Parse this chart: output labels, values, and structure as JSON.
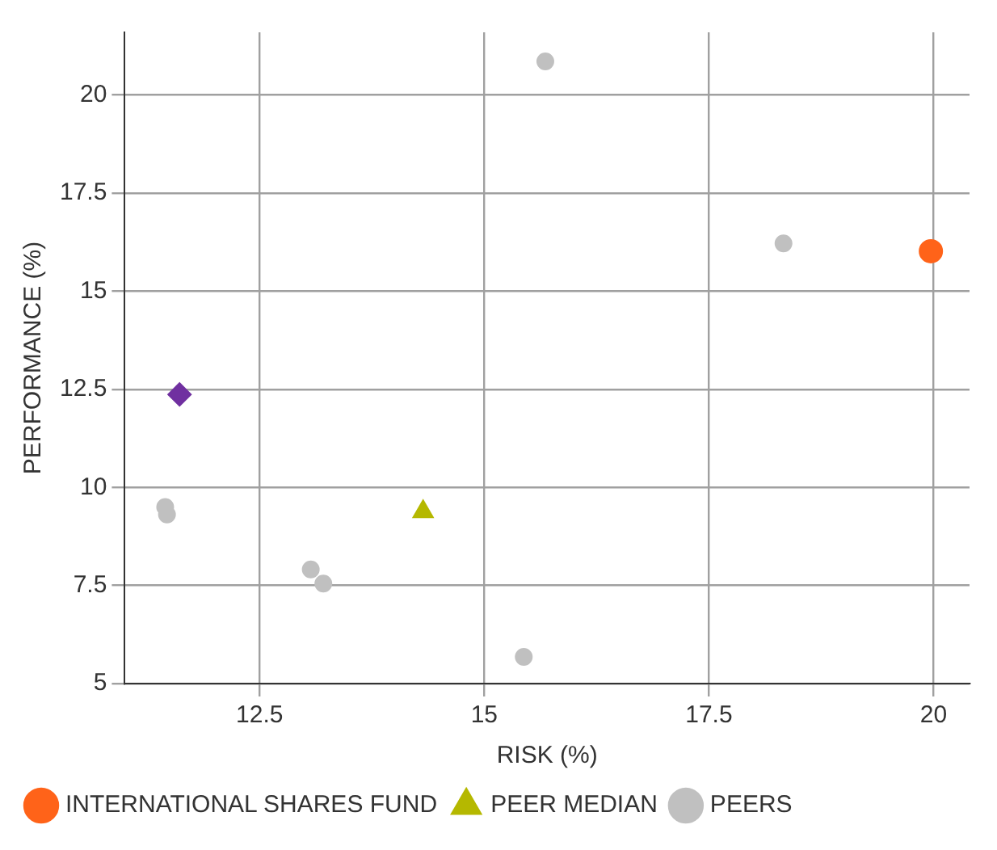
{
  "chart_data": {
    "type": "scatter",
    "xlabel": "RISK (%)",
    "ylabel": "PERFORMANCE (%)",
    "xlim": [
      11,
      20.4
    ],
    "xticks": [
      12.5,
      15,
      17.5,
      20
    ],
    "ylim": [
      5,
      21.6
    ],
    "yticks": [
      5,
      7.5,
      10,
      12.5,
      15,
      17.5,
      20
    ],
    "grid": true,
    "legend": "bottom",
    "series": [
      {
        "name": "INTERNATIONAL SHARES FUND",
        "color": "#ff6319",
        "marker": "circle",
        "x": [
          19.97
        ],
        "values": [
          16.02
        ]
      },
      {
        "color": "#7030a0",
        "marker": "diamond",
        "x": [
          11.61
        ],
        "values": [
          12.37
        ]
      },
      {
        "name": "PEER MEDIAN",
        "color": "#b5b800",
        "marker": "triangle",
        "x": [
          14.32
        ],
        "values": [
          9.38
        ]
      },
      {
        "name": "PEERS",
        "color": "#c0c0c0",
        "marker": "circle",
        "x": [
          15.68,
          18.33,
          11.45,
          11.47,
          13.07,
          13.21,
          15.44
        ],
        "values": [
          20.86,
          16.22,
          9.5,
          9.31,
          7.91,
          7.55,
          5.68
        ]
      }
    ]
  }
}
